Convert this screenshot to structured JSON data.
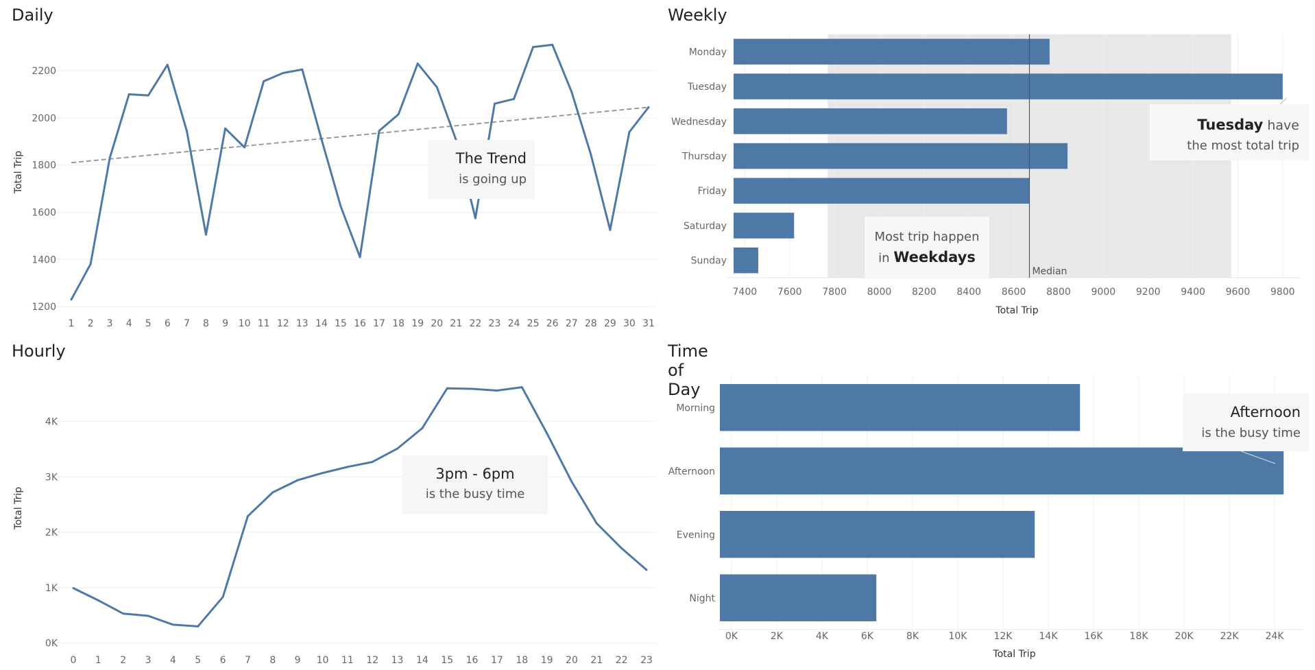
{
  "chart_data": [
    {
      "id": "daily",
      "type": "line",
      "title": "Daily",
      "ylabel": "Total Trip",
      "xlabel": "",
      "x": [
        1,
        2,
        3,
        4,
        5,
        6,
        7,
        8,
        9,
        10,
        11,
        12,
        13,
        14,
        15,
        16,
        17,
        18,
        19,
        20,
        21,
        22,
        23,
        24,
        25,
        26,
        27,
        28,
        29,
        30,
        31
      ],
      "series": [
        {
          "values": [
            1230,
            1380,
            1830,
            2100,
            2095,
            2225,
            1945,
            1505,
            1955,
            1875,
            2155,
            2190,
            2205,
            1910,
            1625,
            1410,
            1945,
            2015,
            2230,
            2130,
            1905,
            1575,
            2060,
            2080,
            2300,
            2310,
            2110,
            1845,
            1525,
            1940,
            2045
          ]
        }
      ],
      "trend": {
        "start": 1810,
        "end": 2045
      },
      "ylim": [
        1180,
        2360
      ],
      "yticks": [
        1200,
        1400,
        1600,
        1800,
        2000,
        2200
      ],
      "color": "#4e79a7",
      "annotation": {
        "bold": "The Trend",
        "text": "is going up"
      }
    },
    {
      "id": "weekly",
      "type": "bar",
      "title": "Weekly",
      "xlabel": "Total Trip",
      "categories": [
        "Monday",
        "Tuesday",
        "Wednesday",
        "Thursday",
        "Friday",
        "Saturday",
        "Sunday"
      ],
      "values": [
        8760,
        9800,
        8570,
        8840,
        8670,
        7620,
        7460
      ],
      "xlim": [
        7350,
        9880
      ],
      "xticks": [
        7400,
        7600,
        7800,
        8000,
        8200,
        8400,
        8600,
        8800,
        9000,
        9200,
        9400,
        9600,
        9800
      ],
      "band": [
        7770,
        9570
      ],
      "median": {
        "value": 8670,
        "label": "Median"
      },
      "color": "#4e79a7",
      "annotations": [
        {
          "bold": "Tuesday",
          "rest": " have",
          "line2": "the most total trip"
        },
        {
          "line1": "Most trip happen",
          "pre": "in ",
          "bold": "Weekdays"
        }
      ]
    },
    {
      "id": "hourly",
      "type": "line",
      "title": "Hourly",
      "ylabel": "Total Trip",
      "xlabel": "",
      "x": [
        0,
        1,
        2,
        3,
        4,
        5,
        6,
        7,
        8,
        9,
        10,
        11,
        12,
        13,
        14,
        15,
        16,
        17,
        18,
        19,
        20,
        21,
        22,
        23
      ],
      "series": [
        {
          "values": [
            990,
            770,
            530,
            490,
            330,
            300,
            830,
            2290,
            2720,
            2940,
            3070,
            3180,
            3270,
            3510,
            3880,
            4600,
            4590,
            4560,
            4620,
            3790,
            2910,
            2160,
            1710,
            1320
          ]
        }
      ],
      "ylim": [
        -80,
        4950
      ],
      "yticks": [
        0,
        1000,
        2000,
        3000,
        4000
      ],
      "ytick_labels": [
        "0K",
        "1K",
        "2K",
        "3K",
        "4K"
      ],
      "color": "#4e79a7",
      "annotation": {
        "bold": "3pm - 6pm",
        "text": "is the busy time"
      }
    },
    {
      "id": "timeofday",
      "type": "bar",
      "title": "Time of Day",
      "xlabel": "Total Trip",
      "categories": [
        "Morning",
        "Afternoon",
        "Evening",
        "Night"
      ],
      "values": [
        15400,
        24400,
        13400,
        6400
      ],
      "xlim": [
        -300,
        25300
      ],
      "xticks": [
        0,
        2000,
        4000,
        6000,
        8000,
        10000,
        12000,
        14000,
        16000,
        18000,
        20000,
        22000,
        24000
      ],
      "xtick_labels": [
        "0K",
        "2K",
        "4K",
        "6K",
        "8K",
        "10K",
        "12K",
        "14K",
        "16K",
        "18K",
        "20K",
        "22K",
        "24K"
      ],
      "color": "#4e79a7",
      "annotation": {
        "bold": "Afternoon",
        "text": "is the busy time"
      }
    }
  ]
}
